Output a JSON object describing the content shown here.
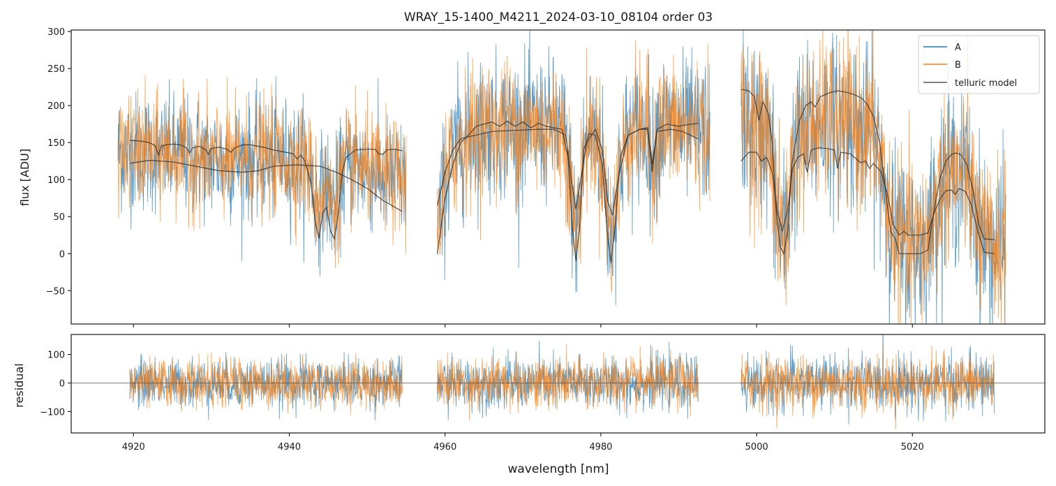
{
  "figure": {
    "title": "WRAY_15-1400_M4211_2024-03-10_08104  order 03"
  },
  "colors": {
    "A": "#1f77b4",
    "B": "#ff7f0e",
    "telluric": "#333333",
    "axes": "#262626",
    "zero_line": "#555555"
  },
  "chart_data": [
    {
      "type": "line",
      "panel": "top",
      "title": "WRAY_15-1400_M4211_2024-03-10_08104  order 03",
      "xlabel": "",
      "ylabel": "flux [ADU]",
      "xlim": [
        4912,
        5037
      ],
      "ylim": [
        -95,
        302
      ],
      "yticks": [
        -50,
        0,
        50,
        100,
        150,
        200,
        250,
        300
      ],
      "ytick_labels": [
        "−50",
        "0",
        "50",
        "100",
        "150",
        "200",
        "250",
        "300"
      ],
      "xticks": [
        4920,
        4940,
        4960,
        4980,
        5000,
        5020
      ],
      "grid": false,
      "legend": {
        "placement": "top-right",
        "entries": [
          {
            "label": "A",
            "series": "A"
          },
          {
            "label": "B",
            "series": "B"
          },
          {
            "label": "telluric model",
            "series": "telluric"
          }
        ]
      },
      "segments": [
        {
          "x_range": [
            4918,
            4955
          ],
          "noise_sigma": 38
        },
        {
          "x_range": [
            4959,
            4994
          ],
          "noise_sigma": 45
        },
        {
          "x_range": [
            4998,
            5032
          ],
          "noise_sigma": 55
        }
      ],
      "series": [
        {
          "name": "A",
          "kind": "observed spectrum (noisy)"
        },
        {
          "name": "B",
          "kind": "observed spectrum (noisy)"
        },
        {
          "name": "telluric model (A)",
          "points": [
            [
              4919.5,
              153
            ],
            [
              4921,
              152
            ],
            [
              4922,
              150
            ],
            [
              4922.8,
              146
            ],
            [
              4923.2,
              133
            ],
            [
              4923.6,
              146
            ],
            [
              4925,
              148
            ],
            [
              4926,
              147
            ],
            [
              4926.8,
              143
            ],
            [
              4927.2,
              136
            ],
            [
              4927.6,
              143
            ],
            [
              4928.5,
              145
            ],
            [
              4929.3,
              140
            ],
            [
              4929.6,
              134
            ],
            [
              4930,
              142
            ],
            [
              4931,
              144
            ],
            [
              4932,
              141
            ],
            [
              4932.5,
              137
            ],
            [
              4933,
              143
            ],
            [
              4934,
              147
            ],
            [
              4935,
              147
            ],
            [
              4936,
              145
            ],
            [
              4937,
              143
            ],
            [
              4938,
              140
            ],
            [
              4939,
              138
            ],
            [
              4940.5,
              135
            ],
            [
              4941,
              128
            ],
            [
              4941.5,
              133
            ],
            [
              4942,
              125
            ],
            [
              4942.8,
              95
            ],
            [
              4943.3,
              45
            ],
            [
              4943.8,
              20
            ],
            [
              4944.3,
              55
            ],
            [
              4944.8,
              63
            ],
            [
              4945.3,
              30
            ],
            [
              4945.8,
              20
            ],
            [
              4946.3,
              55
            ],
            [
              4946.8,
              110
            ],
            [
              4947.3,
              130
            ],
            [
              4948.5,
              140
            ],
            [
              4950,
              141
            ],
            [
              4951,
              141
            ],
            [
              4951.5,
              135
            ],
            [
              4952,
              134
            ],
            [
              4952.5,
              140
            ],
            [
              4953.5,
              141
            ],
            [
              4954.5,
              139
            ]
          ]
        },
        {
          "name": "telluric model (B)",
          "points": [
            [
              4919.5,
              122
            ],
            [
              4922,
              126
            ],
            [
              4925,
              124
            ],
            [
              4928,
              118
            ],
            [
              4931,
              112
            ],
            [
              4934,
              110
            ],
            [
              4936,
              112
            ],
            [
              4938,
              118
            ],
            [
              4941,
              120
            ],
            [
              4944,
              118
            ],
            [
              4946,
              110
            ],
            [
              4948,
              100
            ],
            [
              4950,
              88
            ],
            [
              4952,
              72
            ],
            [
              4954.5,
              57
            ]
          ]
        },
        {
          "name": "telluric model (A) segment 2",
          "points": [
            [
              4959,
              0
            ],
            [
              4960,
              75
            ],
            [
              4961,
              120
            ],
            [
              4962,
              150
            ],
            [
              4963,
              160
            ],
            [
              4964,
              172
            ],
            [
              4965,
              175
            ],
            [
              4966,
              178
            ],
            [
              4967,
              172
            ],
            [
              4968,
              179
            ],
            [
              4969,
              172
            ],
            [
              4970,
              178
            ],
            [
              4971,
              170
            ],
            [
              4972,
              176
            ],
            [
              4973,
              172
            ],
            [
              4974,
              170
            ],
            [
              4975,
              168
            ],
            [
              4975.8,
              130
            ],
            [
              4976.3,
              40
            ],
            [
              4976.8,
              -10
            ],
            [
              4977.3,
              40
            ],
            [
              4977.8,
              140
            ],
            [
              4978.5,
              162
            ],
            [
              4979.3,
              160
            ],
            [
              4980.2,
              120
            ],
            [
              4980.8,
              30
            ],
            [
              4981.3,
              -13
            ],
            [
              4981.8,
              35
            ],
            [
              4982.5,
              130
            ],
            [
              4983.5,
              160
            ],
            [
              4985,
              168
            ],
            [
              4986,
              170
            ],
            [
              4986.6,
              120
            ],
            [
              4987.2,
              168
            ],
            [
              4988.5,
              175
            ],
            [
              4990,
              172
            ],
            [
              4991,
              174
            ],
            [
              4992.5,
              176
            ]
          ]
        },
        {
          "name": "telluric model (B) segment 2",
          "points": [
            [
              4959,
              65
            ],
            [
              4960,
              110
            ],
            [
              4961,
              140
            ],
            [
              4962,
              155
            ],
            [
              4963,
              158
            ],
            [
              4964,
              160
            ],
            [
              4966,
              165
            ],
            [
              4968,
              166
            ],
            [
              4970,
              167
            ],
            [
              4972,
              168
            ],
            [
              4974,
              168
            ],
            [
              4975.5,
              160
            ],
            [
              4976.2,
              100
            ],
            [
              4976.8,
              60
            ],
            [
              4977.4,
              100
            ],
            [
              4978.2,
              150
            ],
            [
              4979.3,
              168
            ],
            [
              4980.2,
              140
            ],
            [
              4980.9,
              70
            ],
            [
              4981.5,
              52
            ],
            [
              4982.2,
              100
            ],
            [
              4983.5,
              160
            ],
            [
              4985,
              168
            ],
            [
              4986,
              168
            ],
            [
              4986.6,
              110
            ],
            [
              4987.2,
              165
            ],
            [
              4989,
              168
            ],
            [
              4990.5,
              165
            ],
            [
              4991.5,
              160
            ],
            [
              4992.5,
              155
            ]
          ]
        },
        {
          "name": "telluric model (A) segment 3",
          "points": [
            [
              4998,
              222
            ],
            [
              4999,
              220
            ],
            [
              4999.7,
              212
            ],
            [
              5000.3,
              180
            ],
            [
              5000.8,
              205
            ],
            [
              5001.5,
              190
            ],
            [
              5002,
              150
            ],
            [
              5002.5,
              60
            ],
            [
              5003,
              10
            ],
            [
              5003.5,
              0
            ],
            [
              5004,
              30
            ],
            [
              5004.5,
              120
            ],
            [
              5005.5,
              180
            ],
            [
              5006.3,
              200
            ],
            [
              5007,
              205
            ],
            [
              5007.5,
              198
            ],
            [
              5008.2,
              212
            ],
            [
              5009.5,
              218
            ],
            [
              5010.5,
              220
            ],
            [
              5011.5,
              218
            ],
            [
              5012.5,
              215
            ],
            [
              5013.5,
              210
            ],
            [
              5014.3,
              200
            ],
            [
              5015,
              185
            ],
            [
              5015.8,
              150
            ],
            [
              5016.5,
              90
            ],
            [
              5017.2,
              30
            ],
            [
              5017.8,
              20
            ],
            [
              5018.3,
              0
            ],
            [
              5019,
              0
            ],
            [
              5021,
              0
            ],
            [
              5022,
              5
            ],
            [
              5022.8,
              60
            ],
            [
              5023.5,
              100
            ],
            [
              5024.3,
              125
            ],
            [
              5025,
              134
            ],
            [
              5025.6,
              136
            ],
            [
              5026.3,
              133
            ],
            [
              5027,
              120
            ],
            [
              5027.8,
              85
            ],
            [
              5028.5,
              40
            ],
            [
              5029.2,
              20
            ],
            [
              5030.5,
              19
            ]
          ]
        },
        {
          "name": "telluric model (B) segment 3",
          "points": [
            [
              4998,
              125
            ],
            [
              4999,
              137
            ],
            [
              5000,
              137
            ],
            [
              5000.6,
              125
            ],
            [
              5001.3,
              130
            ],
            [
              5002,
              110
            ],
            [
              5002.6,
              60
            ],
            [
              5003.3,
              30
            ],
            [
              5004,
              60
            ],
            [
              5004.6,
              115
            ],
            [
              5005.3,
              130
            ],
            [
              5006,
              135
            ],
            [
              5006.5,
              110
            ],
            [
              5007,
              140
            ],
            [
              5008,
              143
            ],
            [
              5009,
              142
            ],
            [
              5010,
              140
            ],
            [
              5010.4,
              115
            ],
            [
              5010.8,
              137
            ],
            [
              5012,
              135
            ],
            [
              5012.8,
              128
            ],
            [
              5013.3,
              123
            ],
            [
              5014,
              125
            ],
            [
              5014.5,
              115
            ],
            [
              5015,
              122
            ],
            [
              5016,
              110
            ],
            [
              5016.8,
              80
            ],
            [
              5017.5,
              40
            ],
            [
              5018.3,
              25
            ],
            [
              5018.9,
              30
            ],
            [
              5019.5,
              25
            ],
            [
              5021,
              25
            ],
            [
              5022,
              28
            ],
            [
              5022.8,
              55
            ],
            [
              5023.6,
              75
            ],
            [
              5024.3,
              85
            ],
            [
              5025,
              86
            ],
            [
              5025.5,
              80
            ],
            [
              5026,
              88
            ],
            [
              5026.8,
              84
            ],
            [
              5027.6,
              65
            ],
            [
              5028.4,
              30
            ],
            [
              5029.2,
              2
            ],
            [
              5030.5,
              0
            ]
          ]
        }
      ]
    },
    {
      "type": "line",
      "panel": "bottom",
      "xlabel": "wavelength [nm]",
      "ylabel": "residual",
      "xlim": [
        4912,
        5037
      ],
      "ylim": [
        -175,
        170
      ],
      "yticks": [
        -100,
        0,
        100
      ],
      "ytick_labels": [
        "−100",
        "0",
        "100"
      ],
      "xticks": [
        4920,
        4940,
        4960,
        4980,
        5000,
        5020
      ],
      "xtick_labels": [
        "4920",
        "4940",
        "4960",
        "4980",
        "5000",
        "5020"
      ],
      "grid": false,
      "zero_line": 0,
      "segments": [
        {
          "x_range": [
            4919.5,
            4954.5
          ],
          "noise_sigma": 42
        },
        {
          "x_range": [
            4959,
            4992.5
          ],
          "noise_sigma": 45
        },
        {
          "x_range": [
            4998,
            5030.5
          ],
          "noise_sigma": 48
        }
      ],
      "series": [
        {
          "name": "A",
          "kind": "residual (noisy)"
        },
        {
          "name": "B",
          "kind": "residual (noisy)"
        }
      ]
    }
  ]
}
